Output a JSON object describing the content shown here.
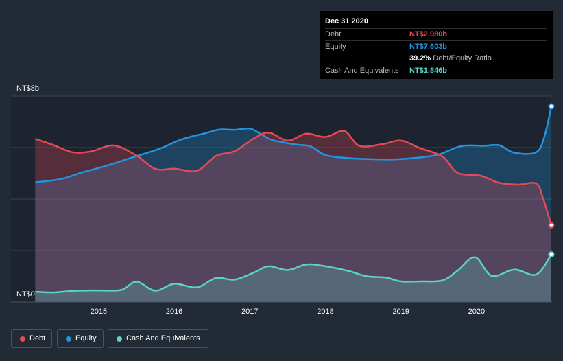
{
  "tooltip": {
    "date": "Dec 31 2020",
    "debt_label": "Debt",
    "debt_value": "NT$2.980b",
    "equity_label": "Equity",
    "equity_value": "NT$7.603b",
    "ratio_value": "39.2%",
    "ratio_label": "Debt/Equity Ratio",
    "cash_label": "Cash And Equivalents",
    "cash_value": "NT$1.846b"
  },
  "legend": {
    "debt": "Debt",
    "equity": "Equity",
    "cash": "Cash And Equivalents"
  },
  "colors": {
    "background": "#222a35",
    "debt": "#e64956",
    "equity": "#2394df",
    "cash": "#5bd3c7",
    "tooltip_debt": "#ef4b57",
    "tooltip_equity": "#2394df",
    "tooltip_cash": "#5bd3c7"
  },
  "chart_data": {
    "type": "area",
    "title": "",
    "xlabel": "",
    "ylabel": "",
    "ylim": [
      0,
      8
    ],
    "xlim": [
      2014.13,
      2020.99
    ],
    "y_tick_labels": [
      {
        "value": 8,
        "label": "NT$8b"
      },
      {
        "value": 0,
        "label": "NT$0"
      }
    ],
    "gridlines_y": [
      8,
      6,
      4,
      2,
      0
    ],
    "x_ticks": [
      {
        "value": 2015,
        "label": "2015"
      },
      {
        "value": 2016,
        "label": "2016"
      },
      {
        "value": 2017,
        "label": "2017"
      },
      {
        "value": 2018,
        "label": "2018"
      },
      {
        "value": 2019,
        "label": "2019"
      },
      {
        "value": 2020,
        "label": "2020"
      }
    ],
    "series": [
      {
        "name": "Equity",
        "key": "equity",
        "points": [
          [
            2014.16,
            4.65
          ],
          [
            2014.5,
            4.78
          ],
          [
            2014.8,
            5.05
          ],
          [
            2015.1,
            5.29
          ],
          [
            2015.45,
            5.62
          ],
          [
            2015.8,
            5.95
          ],
          [
            2016.1,
            6.32
          ],
          [
            2016.4,
            6.55
          ],
          [
            2016.6,
            6.7
          ],
          [
            2016.8,
            6.69
          ],
          [
            2017.0,
            6.74
          ],
          [
            2017.15,
            6.52
          ],
          [
            2017.3,
            6.29
          ],
          [
            2017.6,
            6.12
          ],
          [
            2017.8,
            6.05
          ],
          [
            2018.0,
            5.71
          ],
          [
            2018.3,
            5.59
          ],
          [
            2018.6,
            5.55
          ],
          [
            2018.9,
            5.54
          ],
          [
            2019.2,
            5.6
          ],
          [
            2019.5,
            5.73
          ],
          [
            2019.8,
            6.06
          ],
          [
            2020.1,
            6.07
          ],
          [
            2020.3,
            6.09
          ],
          [
            2020.5,
            5.8
          ],
          [
            2020.79,
            5.82
          ],
          [
            2020.9,
            6.45
          ],
          [
            2020.99,
            7.6
          ]
        ]
      },
      {
        "name": "Debt",
        "key": "debt",
        "points": [
          [
            2014.16,
            6.34
          ],
          [
            2014.4,
            6.1
          ],
          [
            2014.65,
            5.82
          ],
          [
            2014.9,
            5.85
          ],
          [
            2015.2,
            6.08
          ],
          [
            2015.5,
            5.69
          ],
          [
            2015.75,
            5.17
          ],
          [
            2016.0,
            5.18
          ],
          [
            2016.3,
            5.1
          ],
          [
            2016.55,
            5.67
          ],
          [
            2016.8,
            5.86
          ],
          [
            2017.05,
            6.35
          ],
          [
            2017.25,
            6.58
          ],
          [
            2017.5,
            6.27
          ],
          [
            2017.75,
            6.54
          ],
          [
            2018.0,
            6.41
          ],
          [
            2018.25,
            6.64
          ],
          [
            2018.45,
            6.07
          ],
          [
            2018.75,
            6.13
          ],
          [
            2019.0,
            6.27
          ],
          [
            2019.25,
            5.98
          ],
          [
            2019.55,
            5.65
          ],
          [
            2019.75,
            5.02
          ],
          [
            2020.05,
            4.91
          ],
          [
            2020.3,
            4.63
          ],
          [
            2020.55,
            4.56
          ],
          [
            2020.79,
            4.6
          ],
          [
            2020.88,
            4.03
          ],
          [
            2020.99,
            2.98
          ]
        ]
      },
      {
        "name": "Cash And Equivalents",
        "key": "cash",
        "points": [
          [
            2014.16,
            0.4
          ],
          [
            2014.4,
            0.37
          ],
          [
            2014.7,
            0.44
          ],
          [
            2015.0,
            0.45
          ],
          [
            2015.3,
            0.47
          ],
          [
            2015.5,
            0.79
          ],
          [
            2015.75,
            0.44
          ],
          [
            2016.0,
            0.71
          ],
          [
            2016.3,
            0.57
          ],
          [
            2016.55,
            0.93
          ],
          [
            2016.8,
            0.87
          ],
          [
            2017.05,
            1.14
          ],
          [
            2017.25,
            1.39
          ],
          [
            2017.5,
            1.24
          ],
          [
            2017.75,
            1.46
          ],
          [
            2018.0,
            1.39
          ],
          [
            2018.3,
            1.21
          ],
          [
            2018.55,
            1.0
          ],
          [
            2018.8,
            0.95
          ],
          [
            2019.0,
            0.8
          ],
          [
            2019.25,
            0.8
          ],
          [
            2019.55,
            0.84
          ],
          [
            2019.75,
            1.22
          ],
          [
            2019.98,
            1.74
          ],
          [
            2020.2,
            1.02
          ],
          [
            2020.5,
            1.26
          ],
          [
            2020.79,
            1.07
          ],
          [
            2020.99,
            1.85
          ]
        ]
      }
    ]
  }
}
